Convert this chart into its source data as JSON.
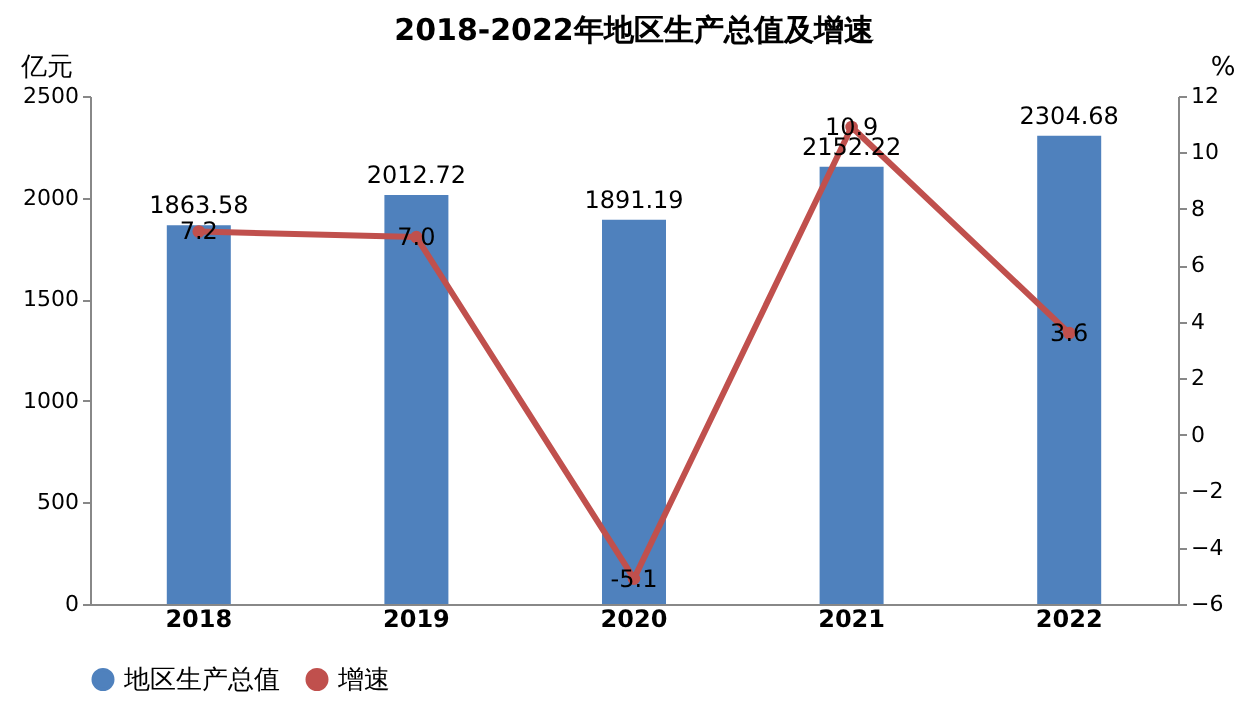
{
  "chart_data": {
    "type": "bar",
    "title": "2018-2022年地区生产总值及增速",
    "ylabel": "亿元",
    "y2label": "%",
    "categories": [
      "2018",
      "2019",
      "2020",
      "2021",
      "2022"
    ],
    "series": [
      {
        "name": "地区生产总值",
        "color": "#4f81bd",
        "values": [
          1863.58,
          2012.72,
          1891.19,
          2152.22,
          2304.68
        ]
      },
      {
        "name": "增速",
        "type": "line",
        "axis": "y2",
        "color": "#c0504d",
        "values": [
          7.2,
          7.0,
          -5.1,
          10.9,
          3.6
        ],
        "value_labels": [
          "7.2",
          "7.0",
          "-5.1",
          "10.9",
          "3.6"
        ]
      }
    ],
    "ylim": [
      0,
      2500
    ],
    "yticks": [
      0,
      500,
      1000,
      1500,
      2000,
      2500
    ],
    "y2lim": [
      -6,
      12
    ],
    "y2ticks": [
      -6,
      -4,
      -2,
      0,
      2,
      4,
      6,
      8,
      10,
      12
    ],
    "data_labels": true,
    "legend": "bottom",
    "grid": false,
    "marker": "circle",
    "line_style": "solid"
  }
}
